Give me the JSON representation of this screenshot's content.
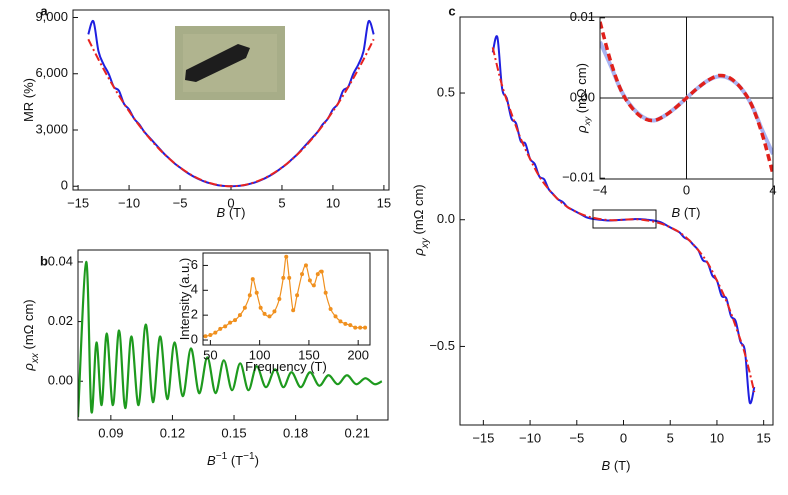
{
  "chart_data": [
    {
      "type": "line",
      "label": "a",
      "xlabel": [
        {
          "text": "B",
          "style": "italic"
        },
        {
          "text": " (T)"
        }
      ],
      "ylabel": [
        {
          "text": "MR (%)"
        }
      ],
      "xlim": [
        -15.5,
        15.5
      ],
      "ylim": [
        -200,
        9400
      ],
      "xticks": [
        {
          "value": -15,
          "label": "−15"
        },
        {
          "value": -10,
          "label": "−10"
        },
        {
          "value": -5,
          "label": "−5"
        },
        0,
        5,
        10,
        15
      ],
      "yticks": [
        0,
        {
          "value": 3000,
          "label": "3,000"
        },
        {
          "value": 6000,
          "label": "6,000"
        },
        {
          "value": 9000,
          "label": "9,000"
        }
      ],
      "series": [
        {
          "color": "#1f1fe0",
          "linestyle": "solid",
          "x": [
            -14,
            -13.5,
            -13,
            -12.5,
            -12,
            -11.5,
            -11,
            -10.5,
            -10,
            -9.5,
            -9,
            -8.5,
            -8,
            -7.5,
            -7,
            -6.5,
            -6,
            -5.5,
            -5,
            -4.5,
            -4,
            -3.5,
            -3,
            -2.5,
            -2,
            -1.5,
            -1,
            -0.5,
            0,
            0.5,
            1,
            1.5,
            2,
            2.5,
            3,
            3.5,
            4,
            4.5,
            5,
            5.5,
            6,
            6.5,
            7,
            7.5,
            8,
            8.5,
            9,
            9.5,
            10,
            10.5,
            11,
            11.5,
            12,
            12.5,
            13,
            13.5,
            14
          ],
          "y": [
            8100,
            8800,
            7200,
            6500,
            6000,
            5300,
            5100,
            4400,
            4100,
            3600,
            3300,
            2900,
            2600,
            2300,
            2000,
            1700,
            1450,
            1200,
            1000,
            800,
            620,
            470,
            340,
            230,
            150,
            80,
            35,
            10,
            0,
            10,
            35,
            80,
            150,
            230,
            340,
            470,
            620,
            800,
            1000,
            1200,
            1450,
            1700,
            2000,
            2300,
            2600,
            2900,
            3300,
            3600,
            4100,
            4400,
            5100,
            5300,
            6000,
            6500,
            7200,
            8800,
            8100
          ]
        },
        {
          "color": "#e8231f",
          "linestyle": "dashdot",
          "x": [
            -14,
            -13,
            -12,
            -11,
            -10,
            -9,
            -8,
            -7,
            -6,
            -5,
            -4,
            -3,
            -2,
            -1,
            0,
            1,
            2,
            3,
            4,
            5,
            6,
            7,
            8,
            9,
            10,
            11,
            12,
            13,
            14
          ],
          "y": [
            7840,
            6760,
            5760,
            4840,
            4000,
            3240,
            2560,
            1960,
            1440,
            1000,
            640,
            360,
            160,
            40,
            0,
            40,
            160,
            360,
            640,
            1000,
            1440,
            1960,
            2560,
            3240,
            4000,
            4840,
            5760,
            6760,
            7840
          ]
        }
      ]
    },
    {
      "type": "line",
      "label": "b",
      "xlabel": [
        {
          "text": "B",
          "style": "italic"
        },
        {
          "text": "−1",
          "style": "sup"
        },
        {
          "text": " (T"
        },
        {
          "text": "−1",
          "style": "sup"
        },
        {
          "text": ")"
        }
      ],
      "ylabel": [
        {
          "text": "ρ",
          "style": "italic"
        },
        {
          "text": "xx",
          "style": "sub"
        },
        {
          "text": " (mΩ cm)"
        }
      ],
      "xlim": [
        0.074,
        0.225
      ],
      "ylim": [
        -0.013,
        0.044
      ],
      "xticks": [
        0.09,
        0.12,
        0.15,
        0.18,
        0.21
      ],
      "yticks": [
        {
          "value": 0,
          "label": "0.00"
        },
        0.02,
        0.04
      ],
      "series": [
        {
          "color": "#1e9a1e",
          "linestyle": "solid",
          "x": [
            0.074,
            0.078,
            0.0805,
            0.083,
            0.0855,
            0.088,
            0.091,
            0.094,
            0.097,
            0.1,
            0.1035,
            0.107,
            0.1105,
            0.114,
            0.1175,
            0.121,
            0.125,
            0.129,
            0.133,
            0.137,
            0.141,
            0.145,
            0.149,
            0.153,
            0.157,
            0.161,
            0.1655,
            0.17,
            0.174,
            0.178,
            0.1825,
            0.187,
            0.1915,
            0.196,
            0.2005,
            0.205,
            0.2095,
            0.214,
            0.2185,
            0.222
          ],
          "y": [
            -0.012,
            0.04,
            -0.01,
            0.013,
            -0.008,
            0.016,
            -0.008,
            0.017,
            -0.009,
            0.015,
            -0.008,
            0.019,
            -0.007,
            0.015,
            -0.006,
            0.013,
            -0.005,
            0.011,
            -0.004,
            0.008,
            -0.004,
            0.007,
            -0.003,
            0.006,
            -0.003,
            0.005,
            -0.002,
            0.004,
            -0.002,
            0.003,
            -0.002,
            0.003,
            -0.0015,
            0.002,
            -0.001,
            0.002,
            -0.001,
            0.001,
            -0.001,
            0
          ]
        }
      ]
    },
    {
      "type": "line",
      "xlabel": [
        {
          "text": "Frequency (T)"
        }
      ],
      "ylabel": [
        {
          "text": "Intensity (a.u.)"
        }
      ],
      "xlim": [
        42.5,
        212
      ],
      "ylim": [
        -0.4,
        7
      ],
      "xticks": [
        50,
        100,
        150,
        200
      ],
      "yticks": [
        0,
        2,
        4,
        6
      ],
      "series": [
        {
          "color": "#f0901e",
          "linestyle": "solid",
          "marker": "circle",
          "x": [
            45,
            50,
            55,
            60,
            65,
            70,
            75,
            80,
            85,
            90,
            93,
            97,
            101,
            105,
            110,
            115,
            120,
            124,
            127,
            130,
            134,
            138,
            143,
            147,
            151,
            155,
            159,
            163,
            167,
            172,
            177,
            182,
            187,
            192,
            197,
            202,
            207
          ],
          "y": [
            0.3,
            0.4,
            0.6,
            0.9,
            1.1,
            1.4,
            1.6,
            2.0,
            2.6,
            3.6,
            4.9,
            3.8,
            2.6,
            2.1,
            1.9,
            2.3,
            3.3,
            5.0,
            6.7,
            5.0,
            2.4,
            3.6,
            5.3,
            6.0,
            4.8,
            4.4,
            5.3,
            5.5,
            3.8,
            2.5,
            1.9,
            1.5,
            1.3,
            1.2,
            1.0,
            1.0,
            1.0
          ]
        }
      ]
    },
    {
      "type": "line",
      "label": "c",
      "xlabel": [
        {
          "text": "B",
          "style": "italic"
        },
        {
          "text": " (T)"
        }
      ],
      "ylabel": [
        {
          "text": "ρ",
          "style": "italic"
        },
        {
          "text": "xy",
          "style": "sub"
        },
        {
          "text": " (mΩ cm)"
        }
      ],
      "xlim": [
        -17.5,
        16
      ],
      "ylim": [
        -0.81,
        0.8
      ],
      "xticks": [
        {
          "value": -15,
          "label": "−15"
        },
        {
          "value": -10,
          "label": "−10"
        },
        {
          "value": -5,
          "label": "−5"
        },
        0,
        5,
        10,
        15
      ],
      "yticks": [
        {
          "value": -0.5,
          "label": "−0.5"
        },
        {
          "value": 0,
          "label": "0.0"
        },
        0.5
      ],
      "series": [
        {
          "color": "#1f1fe0",
          "linestyle": "solid",
          "x": [
            -14,
            -13.5,
            -13,
            -12.5,
            -12,
            -11.5,
            -11,
            -10.5,
            -10,
            -9.5,
            -9,
            -8.5,
            -8,
            -7.5,
            -7,
            -6.5,
            -6,
            -5.5,
            -5,
            -4.5,
            -4,
            -3.5,
            -3,
            -2.5,
            -2,
            -1.5,
            -1,
            -0.5,
            0,
            0.5,
            1,
            1.5,
            2,
            2.5,
            3,
            3.5,
            4,
            4.5,
            5,
            5.5,
            6,
            6.5,
            7,
            7.5,
            8,
            8.5,
            9,
            9.5,
            10,
            10.5,
            11,
            11.5,
            12,
            12.5,
            13,
            13.5,
            14
          ],
          "y": [
            0.66,
            0.72,
            0.52,
            0.48,
            0.4,
            0.38,
            0.31,
            0.3,
            0.24,
            0.22,
            0.17,
            0.16,
            0.12,
            0.1,
            0.08,
            0.07,
            0.05,
            0.04,
            0.03,
            0.02,
            0.01,
            0.005,
            0.002,
            0,
            -0.002,
            -0.003,
            -0.002,
            -0.001,
            0,
            0.001,
            0.002,
            0.003,
            0.002,
            0,
            -0.002,
            -0.005,
            -0.01,
            -0.02,
            -0.03,
            -0.04,
            -0.05,
            -0.07,
            -0.08,
            -0.1,
            -0.12,
            -0.16,
            -0.17,
            -0.22,
            -0.24,
            -0.3,
            -0.31,
            -0.38,
            -0.4,
            -0.48,
            -0.52,
            -0.72,
            -0.66
          ]
        },
        {
          "color": "#e8231f",
          "linestyle": "dashdot",
          "x": [
            -14,
            -13,
            -12,
            -11,
            -10,
            -9,
            -8,
            -7,
            -6,
            -5,
            -4,
            -3,
            -2,
            -1,
            0,
            1,
            2,
            3,
            4,
            5,
            6,
            7,
            8,
            9,
            10,
            11,
            12,
            13,
            14
          ],
          "y": [
            0.68,
            0.53,
            0.42,
            0.32,
            0.24,
            0.17,
            0.12,
            0.08,
            0.05,
            0.03,
            0.015,
            0.006,
            0,
            -0.002,
            0,
            0.002,
            0,
            -0.006,
            -0.015,
            -0.03,
            -0.05,
            -0.08,
            -0.12,
            -0.17,
            -0.24,
            -0.32,
            -0.42,
            -0.53,
            -0.68
          ]
        }
      ]
    },
    {
      "type": "line",
      "zero_lines": true,
      "xlabel": [
        {
          "text": "B",
          "style": "italic"
        },
        {
          "text": " (T)"
        }
      ],
      "ylabel": [
        {
          "text": "ρ",
          "style": "italic"
        },
        {
          "text": "xy",
          "style": "sub"
        },
        {
          "text": " (mΩ cm)"
        }
      ],
      "xlim": [
        -4,
        4
      ],
      "ylim": [
        -0.0101,
        0.0101
      ],
      "xticks": [
        {
          "value": -4,
          "label": "−4"
        },
        0,
        4
      ],
      "yticks": [
        {
          "value": -0.01,
          "label": "−0.01"
        },
        {
          "value": 0,
          "label": "0.00"
        },
        0.01
      ],
      "series": [
        {
          "color": "#a9b3f2",
          "linestyle": "solid",
          "x": [
            -4,
            -3.5,
            -3,
            -2.5,
            -2,
            -1.5,
            -1,
            -0.5,
            0,
            0.5,
            1,
            1.5,
            2,
            2.5,
            3,
            3.5,
            4
          ],
          "y": [
            0.007,
            0.004,
            0.0008,
            -0.0012,
            -0.0024,
            -0.0028,
            -0.0022,
            -0.0012,
            0,
            0.0012,
            0.0022,
            0.0027,
            0.0024,
            0.0013,
            -0.0008,
            -0.004,
            -0.007
          ]
        },
        {
          "color": "#e0201b",
          "linestyle": "dashed",
          "x": [
            -4,
            -3.5,
            -3,
            -2.5,
            -2,
            -1.5,
            -1,
            -0.5,
            0,
            0.5,
            1,
            1.5,
            2,
            2.5,
            3,
            3.5,
            4
          ],
          "y": [
            0.0095,
            0.0045,
            0.0008,
            -0.0013,
            -0.0025,
            -0.0028,
            -0.0022,
            -0.0012,
            0,
            0.0012,
            0.0022,
            0.0028,
            0.0025,
            0.0013,
            -0.0008,
            -0.0045,
            -0.0095
          ]
        }
      ]
    }
  ]
}
